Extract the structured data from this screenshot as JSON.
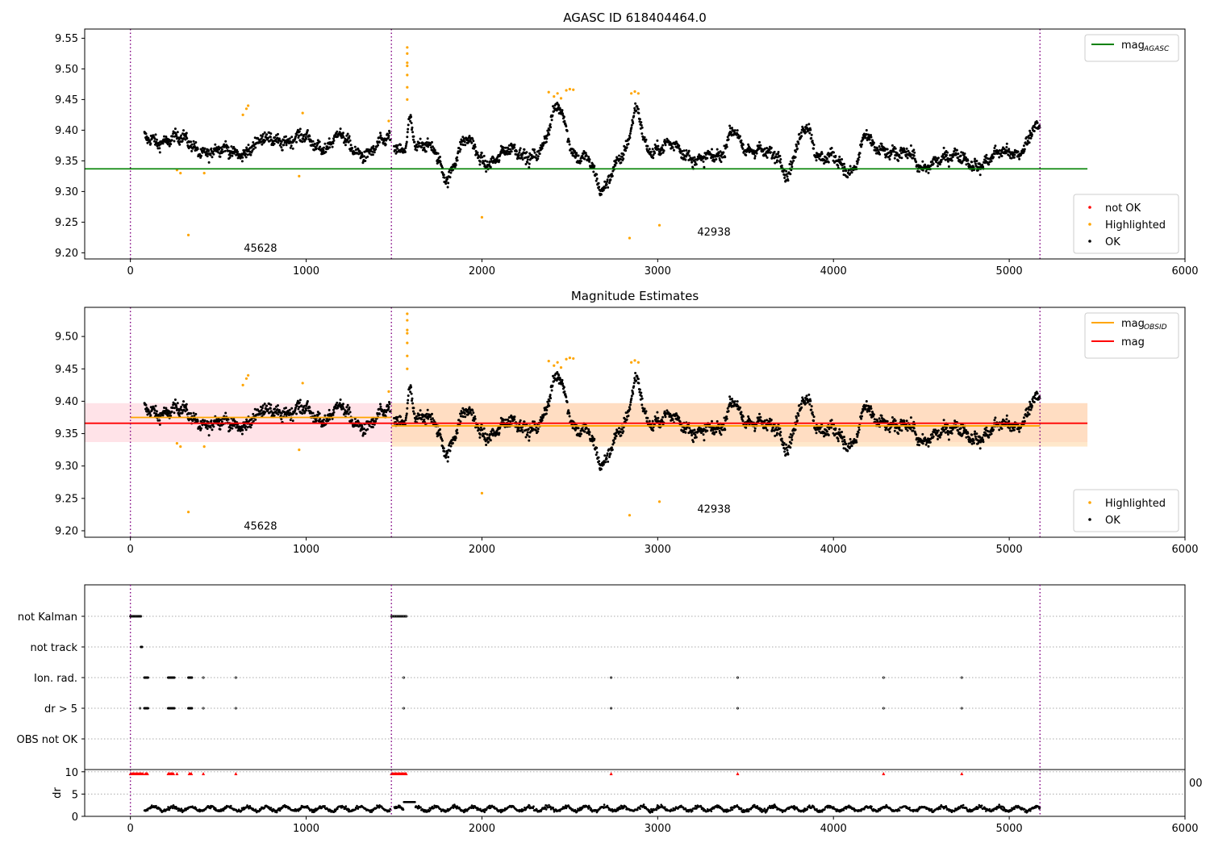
{
  "chart_data": [
    {
      "type": "scatter",
      "title": "AGASC ID 618404464.0",
      "xlim": [
        -260,
        6000
      ],
      "ylim": [
        9.19,
        9.565
      ],
      "xticks": [
        "0",
        "1000",
        "2000",
        "3000",
        "4000",
        "5000",
        "6000"
      ],
      "yticks": [
        "9.20",
        "9.25",
        "9.30",
        "9.35",
        "9.40",
        "9.45",
        "9.50",
        "9.55"
      ],
      "obs_boundaries": [
        0,
        1485,
        5175
      ],
      "obs_labels": [
        {
          "text": "45628",
          "x": 740,
          "y": 9.202
        },
        {
          "text": "42938",
          "x": 3320,
          "y": 9.228
        }
      ],
      "reference_line": {
        "name": "mag_AGASC",
        "value": 9.337,
        "x0": -260,
        "x1": 5445,
        "color": "#008000"
      },
      "legend_top": {
        "placement": "top-right",
        "entries": [
          {
            "label": "mag",
            "sub": "AGASC",
            "color": "#008000"
          }
        ]
      },
      "legend_bottom": {
        "placement": "bottom-right",
        "entries": [
          {
            "label": "not OK",
            "color": "#ff0000"
          },
          {
            "label": "Highlighted",
            "color": "#ffa500"
          },
          {
            "label": "OK",
            "color": "#000000"
          }
        ]
      },
      "series": [
        {
          "name": "OK",
          "color": "#000000",
          "segments": [
            [
              80,
              1480,
              9.375
            ],
            [
              1500,
              5175,
              9.36
            ]
          ]
        },
        {
          "name": "Highlighted",
          "color": "#ffa500",
          "points": [
            [
              265,
              9.335
            ],
            [
              285,
              9.33
            ],
            [
              330,
              9.229
            ],
            [
              420,
              9.33
            ],
            [
              640,
              9.425
            ],
            [
              660,
              9.435
            ],
            [
              670,
              9.44
            ],
            [
              960,
              9.325
            ],
            [
              980,
              9.428
            ],
            [
              1470,
              9.415
            ],
            [
              1575,
              9.535
            ],
            [
              1575,
              9.525
            ],
            [
              1575,
              9.51
            ],
            [
              1575,
              9.505
            ],
            [
              1575,
              9.49
            ],
            [
              1575,
              9.47
            ],
            [
              1575,
              9.45
            ],
            [
              2000,
              9.258
            ],
            [
              2380,
              9.462
            ],
            [
              2410,
              9.455
            ],
            [
              2430,
              9.46
            ],
            [
              2450,
              9.452
            ],
            [
              2480,
              9.465
            ],
            [
              2500,
              9.467
            ],
            [
              2520,
              9.466
            ],
            [
              2840,
              9.224
            ],
            [
              2850,
              9.46
            ],
            [
              2870,
              9.463
            ],
            [
              2890,
              9.46
            ],
            [
              3010,
              9.245
            ]
          ]
        }
      ]
    },
    {
      "type": "scatter",
      "title": "Magnitude Estimates",
      "xlim": [
        -260,
        6000
      ],
      "ylim": [
        9.19,
        9.545
      ],
      "xticks": [
        "0",
        "1000",
        "2000",
        "3000",
        "4000",
        "5000",
        "6000"
      ],
      "yticks": [
        "9.20",
        "9.25",
        "9.30",
        "9.35",
        "9.40",
        "9.45",
        "9.50"
      ],
      "obs_boundaries": [
        0,
        1485,
        5175
      ],
      "obs_labels": [
        {
          "text": "45628",
          "x": 740,
          "y": 9.202
        },
        {
          "text": "42938",
          "x": 3320,
          "y": 9.228
        }
      ],
      "bands": [
        {
          "x0": -260,
          "x1": 5445,
          "y0": 9.337,
          "y1": 9.397,
          "color": "#ffc0cb",
          "opacity": 0.45
        },
        {
          "x0": 1485,
          "x1": 5445,
          "y0": 9.33,
          "y1": 9.397,
          "color": "#ffd8a8",
          "opacity": 0.6
        }
      ],
      "lines": [
        {
          "name": "mag_OBSID",
          "color": "#ffa500",
          "segments": [
            [
              0,
              1485,
              9.375
            ],
            [
              1485,
              5175,
              9.362
            ]
          ]
        },
        {
          "name": "mag",
          "color": "#ff0000",
          "segments": [
            [
              -260,
              5445,
              9.366
            ]
          ]
        }
      ],
      "legend_top": {
        "placement": "top-right",
        "entries": [
          {
            "label": "mag",
            "sub": "OBSID",
            "color": "#ffa500"
          },
          {
            "label": "mag",
            "sub": "",
            "color": "#ff0000"
          }
        ]
      },
      "legend_bottom": {
        "placement": "bottom-right",
        "entries": [
          {
            "label": "Highlighted",
            "color": "#ffa500"
          },
          {
            "label": "OK",
            "color": "#000000"
          }
        ]
      }
    },
    {
      "type": "scatter",
      "xlim": [
        -260,
        6000
      ],
      "flag_rows": [
        "not Kalman",
        "not track",
        "Ion. rad.",
        "dr > 5",
        "OBS not OK"
      ],
      "flag_points": {
        "not Kalman": [
          [
            0,
            60
          ],
          [
            1485,
            1570
          ]
        ],
        "not track": [
          [
            60,
            66
          ]
        ],
        "Ion. rad.": [
          [
            80,
            100
          ],
          [
            215,
            250
          ],
          [
            330,
            350
          ],
          [
            415
          ],
          [
            600
          ],
          [
            1555
          ],
          [
            2735
          ],
          [
            3455
          ],
          [
            4285
          ],
          [
            4730
          ]
        ],
        "dr > 5": [
          [
            55
          ],
          [
            80,
            100
          ],
          [
            215,
            250
          ],
          [
            330,
            350
          ],
          [
            415
          ],
          [
            600
          ],
          [
            1555
          ],
          [
            2735
          ],
          [
            3455
          ],
          [
            4285
          ],
          [
            4730
          ]
        ],
        "OBS not OK": []
      },
      "dr_panel": {
        "ylabel": "dr",
        "ylim": [
          0,
          10.5
        ],
        "yticks": [
          "0",
          "5",
          "10"
        ],
        "xticks": [
          "0",
          "1000",
          "2000",
          "3000",
          "4000",
          "5000",
          "6000"
        ],
        "stray_tick_label": "00",
        "red_markers_at_10": [
          [
            0,
            75
          ],
          [
            85,
            100
          ],
          [
            215,
            250
          ],
          [
            265
          ],
          [
            335,
            350
          ],
          [
            415
          ],
          [
            600
          ],
          [
            1485,
            1570
          ],
          [
            2735
          ],
          [
            3455
          ],
          [
            4285
          ],
          [
            4730
          ]
        ]
      }
    }
  ]
}
